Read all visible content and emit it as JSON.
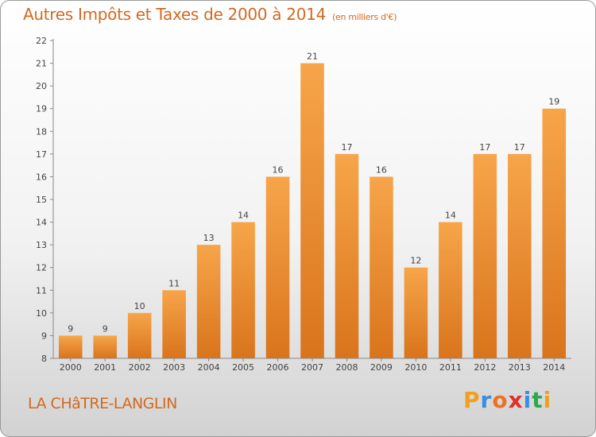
{
  "header": {
    "title": "Autres Impôts et Taxes de 2000 à 2014",
    "unit": "(en milliers d'€)"
  },
  "footer": {
    "commune": "LA CHâTRE-LANGLIN",
    "brand_letters": [
      "P",
      "r",
      "o",
      "x",
      "i",
      "t",
      "i"
    ],
    "brand_colors": [
      "#f0a020",
      "#3a8de0",
      "#f07020",
      "#e0302a",
      "#3a8de0",
      "#2aa84a",
      "#f0a020"
    ]
  },
  "colors": {
    "bar_light": "#f7a54a",
    "bar_dark": "#d9741c",
    "accent": "#d2691e"
  },
  "chart_data": {
    "type": "bar",
    "title": "Autres Impôts et Taxes de 2000 à 2014",
    "subtitle": "(en milliers d'€)",
    "categories": [
      "2000",
      "2001",
      "2002",
      "2003",
      "2004",
      "2005",
      "2006",
      "2007",
      "2008",
      "2009",
      "2010",
      "2011",
      "2012",
      "2013",
      "2014"
    ],
    "values": [
      9,
      9,
      10,
      11,
      13,
      14,
      16,
      21,
      17,
      16,
      12,
      14,
      17,
      17,
      19
    ],
    "ylim": [
      8,
      22
    ],
    "yticks": [
      8,
      9,
      10,
      11,
      12,
      13,
      14,
      15,
      16,
      17,
      18,
      19,
      20,
      21,
      22
    ],
    "grid": false,
    "xlabel": "",
    "ylabel": ""
  }
}
